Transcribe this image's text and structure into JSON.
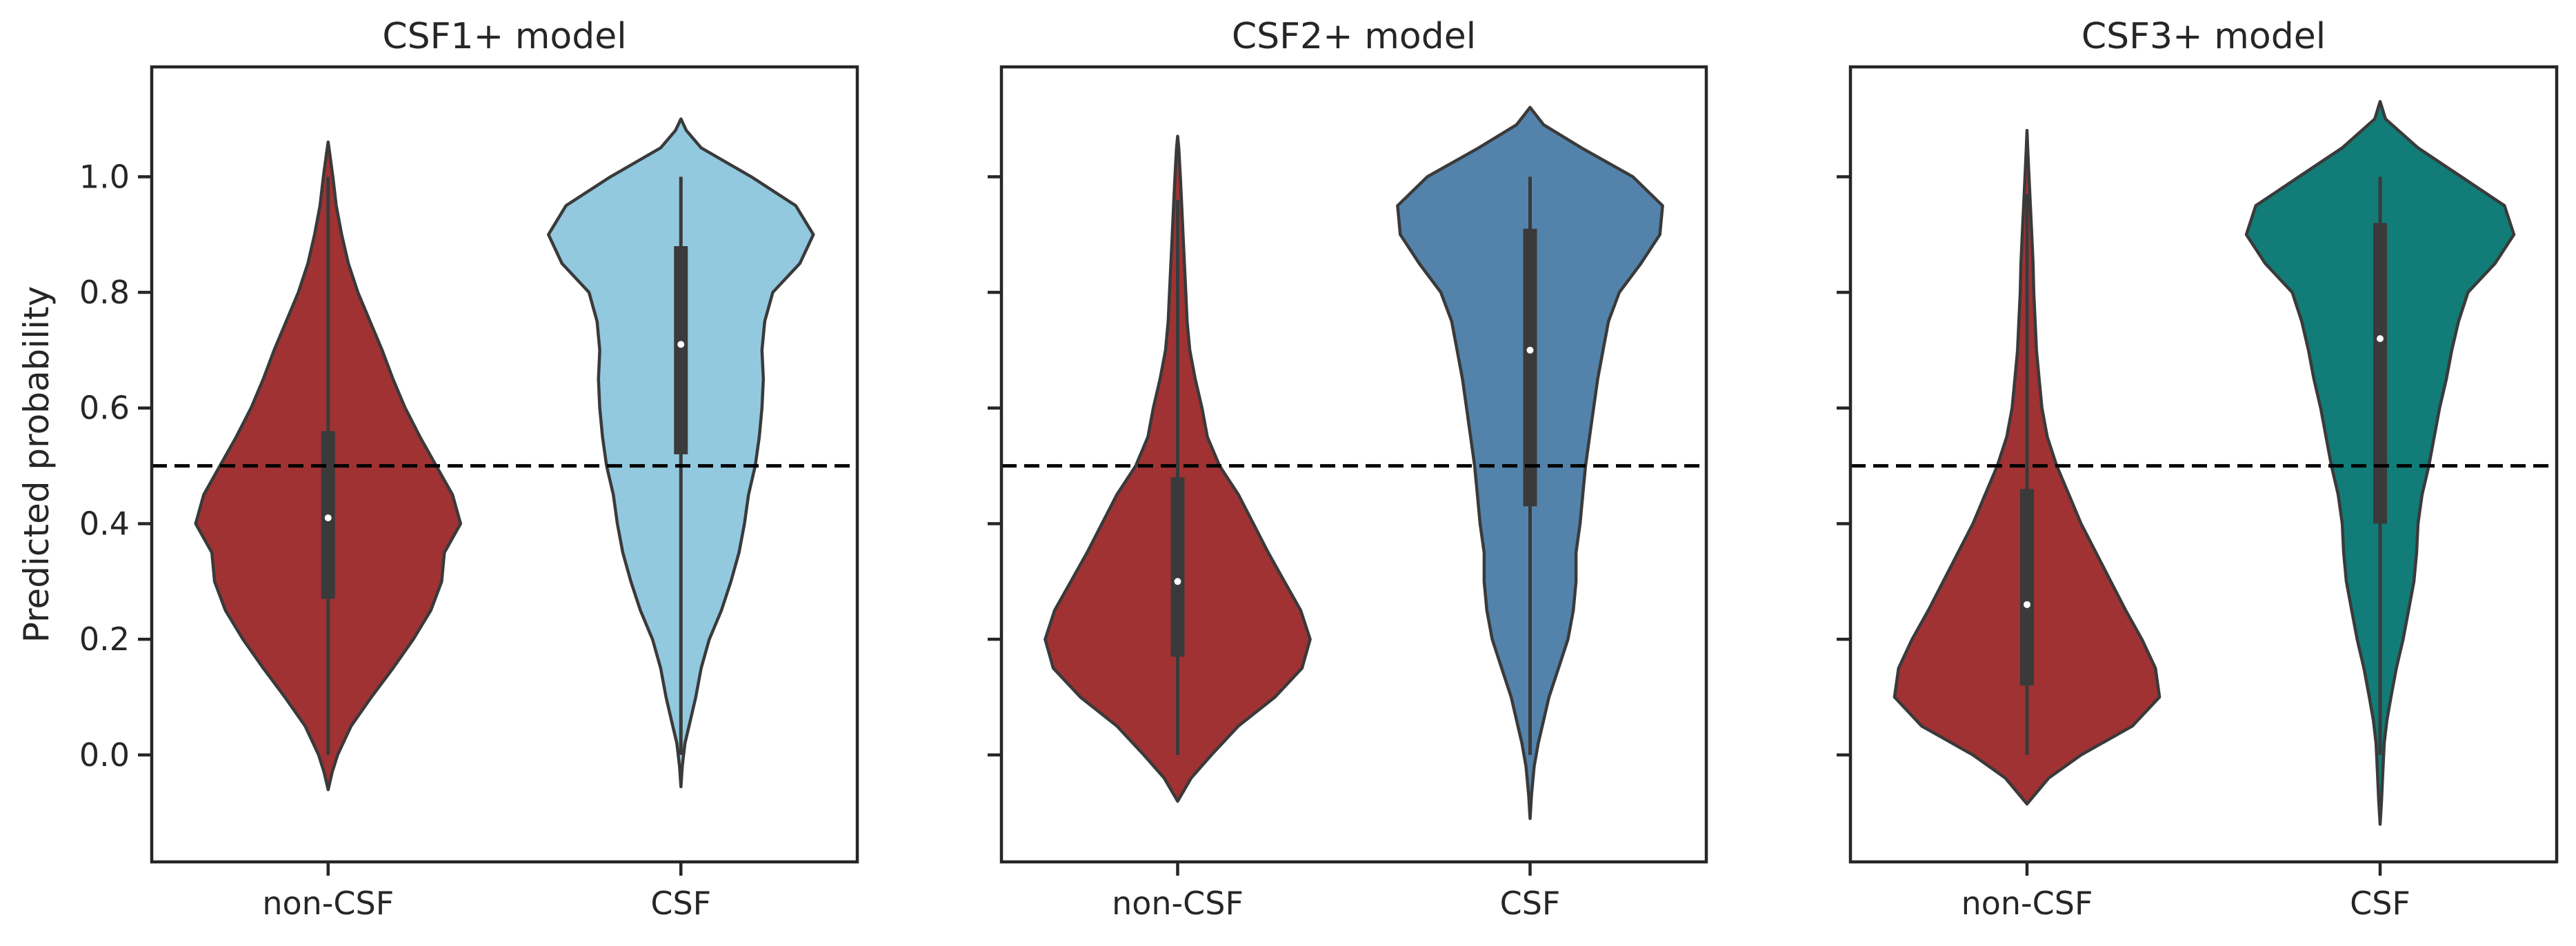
{
  "chart_data": [
    {
      "type": "violin",
      "title": "CSF1+ model",
      "ylabel": "Predicted probability",
      "categories": [
        "non-CSF",
        "CSF"
      ],
      "ylim": [
        -0.185,
        1.19
      ],
      "yticks": [
        0.0,
        0.2,
        0.4,
        0.6,
        0.8,
        1.0
      ],
      "ytick_labels": [
        "0.0",
        "0.2",
        "0.4",
        "0.6",
        "0.8",
        "1.0"
      ],
      "threshold": 0.5,
      "threshold_style": "dashed",
      "grid": false,
      "series": [
        {
          "category": "non-CSF",
          "color": "#A03234",
          "min": 0.0,
          "q1": 0.27,
          "median": 0.41,
          "q3": 0.56,
          "max": 1.0,
          "kde_y": [
            -0.06,
            -0.03,
            0.0,
            0.05,
            0.1,
            0.15,
            0.2,
            0.25,
            0.3,
            0.35,
            0.4,
            0.45,
            0.5,
            0.55,
            0.6,
            0.65,
            0.7,
            0.75,
            0.8,
            0.85,
            0.9,
            0.95,
            1.0,
            1.04,
            1.06
          ],
          "kde_density": [
            0.0,
            0.03,
            0.07,
            0.17,
            0.32,
            0.48,
            0.63,
            0.76,
            0.84,
            0.86,
            0.98,
            0.92,
            0.8,
            0.68,
            0.57,
            0.48,
            0.4,
            0.31,
            0.22,
            0.15,
            0.1,
            0.06,
            0.035,
            0.012,
            0.0
          ]
        },
        {
          "category": "CSF",
          "color": "#92C9DF",
          "min": 0.0,
          "q1": 0.52,
          "median": 0.71,
          "q3": 0.88,
          "max": 1.0,
          "kde_y": [
            -0.055,
            -0.02,
            0.02,
            0.06,
            0.1,
            0.15,
            0.2,
            0.25,
            0.3,
            0.35,
            0.4,
            0.45,
            0.5,
            0.55,
            0.6,
            0.65,
            0.7,
            0.75,
            0.8,
            0.85,
            0.9,
            0.95,
            1.0,
            1.05,
            1.08,
            1.1
          ],
          "kde_density": [
            0.0,
            0.01,
            0.03,
            0.07,
            0.11,
            0.15,
            0.21,
            0.3,
            0.37,
            0.43,
            0.47,
            0.5,
            0.55,
            0.58,
            0.6,
            0.61,
            0.6,
            0.62,
            0.68,
            0.88,
            0.98,
            0.85,
            0.52,
            0.15,
            0.04,
            0.0
          ]
        }
      ]
    },
    {
      "type": "violin",
      "title": "CSF2+ model",
      "ylabel": "",
      "categories": [
        "non-CSF",
        "CSF"
      ],
      "ylim": [
        -0.185,
        1.19
      ],
      "yticks": [
        0.0,
        0.2,
        0.4,
        0.6,
        0.8,
        1.0
      ],
      "threshold": 0.5,
      "threshold_style": "dashed",
      "grid": false,
      "series": [
        {
          "category": "non-CSF",
          "color": "#A03234",
          "min": 0.0,
          "q1": 0.17,
          "median": 0.3,
          "q3": 0.48,
          "max": 0.96,
          "kde_y": [
            -0.08,
            -0.04,
            0.0,
            0.05,
            0.1,
            0.15,
            0.2,
            0.25,
            0.3,
            0.35,
            0.4,
            0.45,
            0.5,
            0.55,
            0.6,
            0.65,
            0.7,
            0.75,
            0.8,
            0.85,
            0.9,
            0.95,
            1.0,
            1.05,
            1.07
          ],
          "kde_density": [
            0.0,
            0.1,
            0.25,
            0.45,
            0.72,
            0.92,
            0.98,
            0.91,
            0.79,
            0.67,
            0.56,
            0.45,
            0.31,
            0.22,
            0.18,
            0.13,
            0.09,
            0.07,
            0.06,
            0.05,
            0.04,
            0.03,
            0.02,
            0.008,
            0.0
          ]
        },
        {
          "category": "CSF",
          "color": "#5383AB",
          "min": 0.0,
          "q1": 0.43,
          "median": 0.7,
          "q3": 0.91,
          "max": 1.0,
          "kde_y": [
            -0.11,
            -0.07,
            -0.02,
            0.02,
            0.06,
            0.1,
            0.15,
            0.2,
            0.25,
            0.3,
            0.35,
            0.4,
            0.45,
            0.5,
            0.55,
            0.6,
            0.65,
            0.7,
            0.75,
            0.8,
            0.85,
            0.9,
            0.95,
            1.0,
            1.05,
            1.09,
            1.12
          ],
          "kde_density": [
            0.0,
            0.01,
            0.03,
            0.06,
            0.1,
            0.14,
            0.21,
            0.28,
            0.32,
            0.34,
            0.34,
            0.37,
            0.39,
            0.41,
            0.44,
            0.47,
            0.5,
            0.54,
            0.58,
            0.66,
            0.82,
            0.96,
            0.98,
            0.76,
            0.38,
            0.1,
            0.0
          ]
        }
      ]
    },
    {
      "type": "violin",
      "title": "CSF3+ model",
      "ylabel": "",
      "categories": [
        "non-CSF",
        "CSF"
      ],
      "ylim": [
        -0.185,
        1.19
      ],
      "yticks": [
        0.0,
        0.2,
        0.4,
        0.6,
        0.8,
        1.0
      ],
      "threshold": 0.5,
      "threshold_style": "dashed",
      "grid": false,
      "series": [
        {
          "category": "non-CSF",
          "color": "#A03234",
          "min": 0.0,
          "q1": 0.12,
          "median": 0.26,
          "q3": 0.46,
          "max": 0.97,
          "kde_y": [
            -0.085,
            -0.04,
            0.0,
            0.05,
            0.1,
            0.15,
            0.2,
            0.25,
            0.3,
            0.35,
            0.4,
            0.45,
            0.5,
            0.55,
            0.6,
            0.65,
            0.7,
            0.75,
            0.8,
            0.85,
            0.9,
            0.95,
            1.0,
            1.05,
            1.08
          ],
          "kde_density": [
            0.0,
            0.16,
            0.4,
            0.78,
            0.98,
            0.95,
            0.85,
            0.73,
            0.62,
            0.51,
            0.4,
            0.31,
            0.22,
            0.15,
            0.11,
            0.09,
            0.07,
            0.06,
            0.05,
            0.045,
            0.035,
            0.025,
            0.015,
            0.005,
            0.0
          ]
        },
        {
          "category": "CSF",
          "color": "#127C78",
          "min": 0.0,
          "q1": 0.4,
          "median": 0.72,
          "q3": 0.92,
          "max": 1.0,
          "kde_y": [
            -0.12,
            -0.08,
            -0.03,
            0.02,
            0.06,
            0.1,
            0.15,
            0.2,
            0.25,
            0.3,
            0.35,
            0.4,
            0.45,
            0.5,
            0.55,
            0.6,
            0.65,
            0.7,
            0.75,
            0.8,
            0.85,
            0.9,
            0.95,
            1.0,
            1.05,
            1.1,
            1.13
          ],
          "kde_density": [
            0.0,
            0.01,
            0.02,
            0.03,
            0.05,
            0.08,
            0.12,
            0.17,
            0.21,
            0.25,
            0.27,
            0.28,
            0.31,
            0.36,
            0.4,
            0.44,
            0.49,
            0.53,
            0.58,
            0.65,
            0.85,
            0.99,
            0.92,
            0.6,
            0.28,
            0.04,
            0.0
          ]
        }
      ]
    }
  ]
}
